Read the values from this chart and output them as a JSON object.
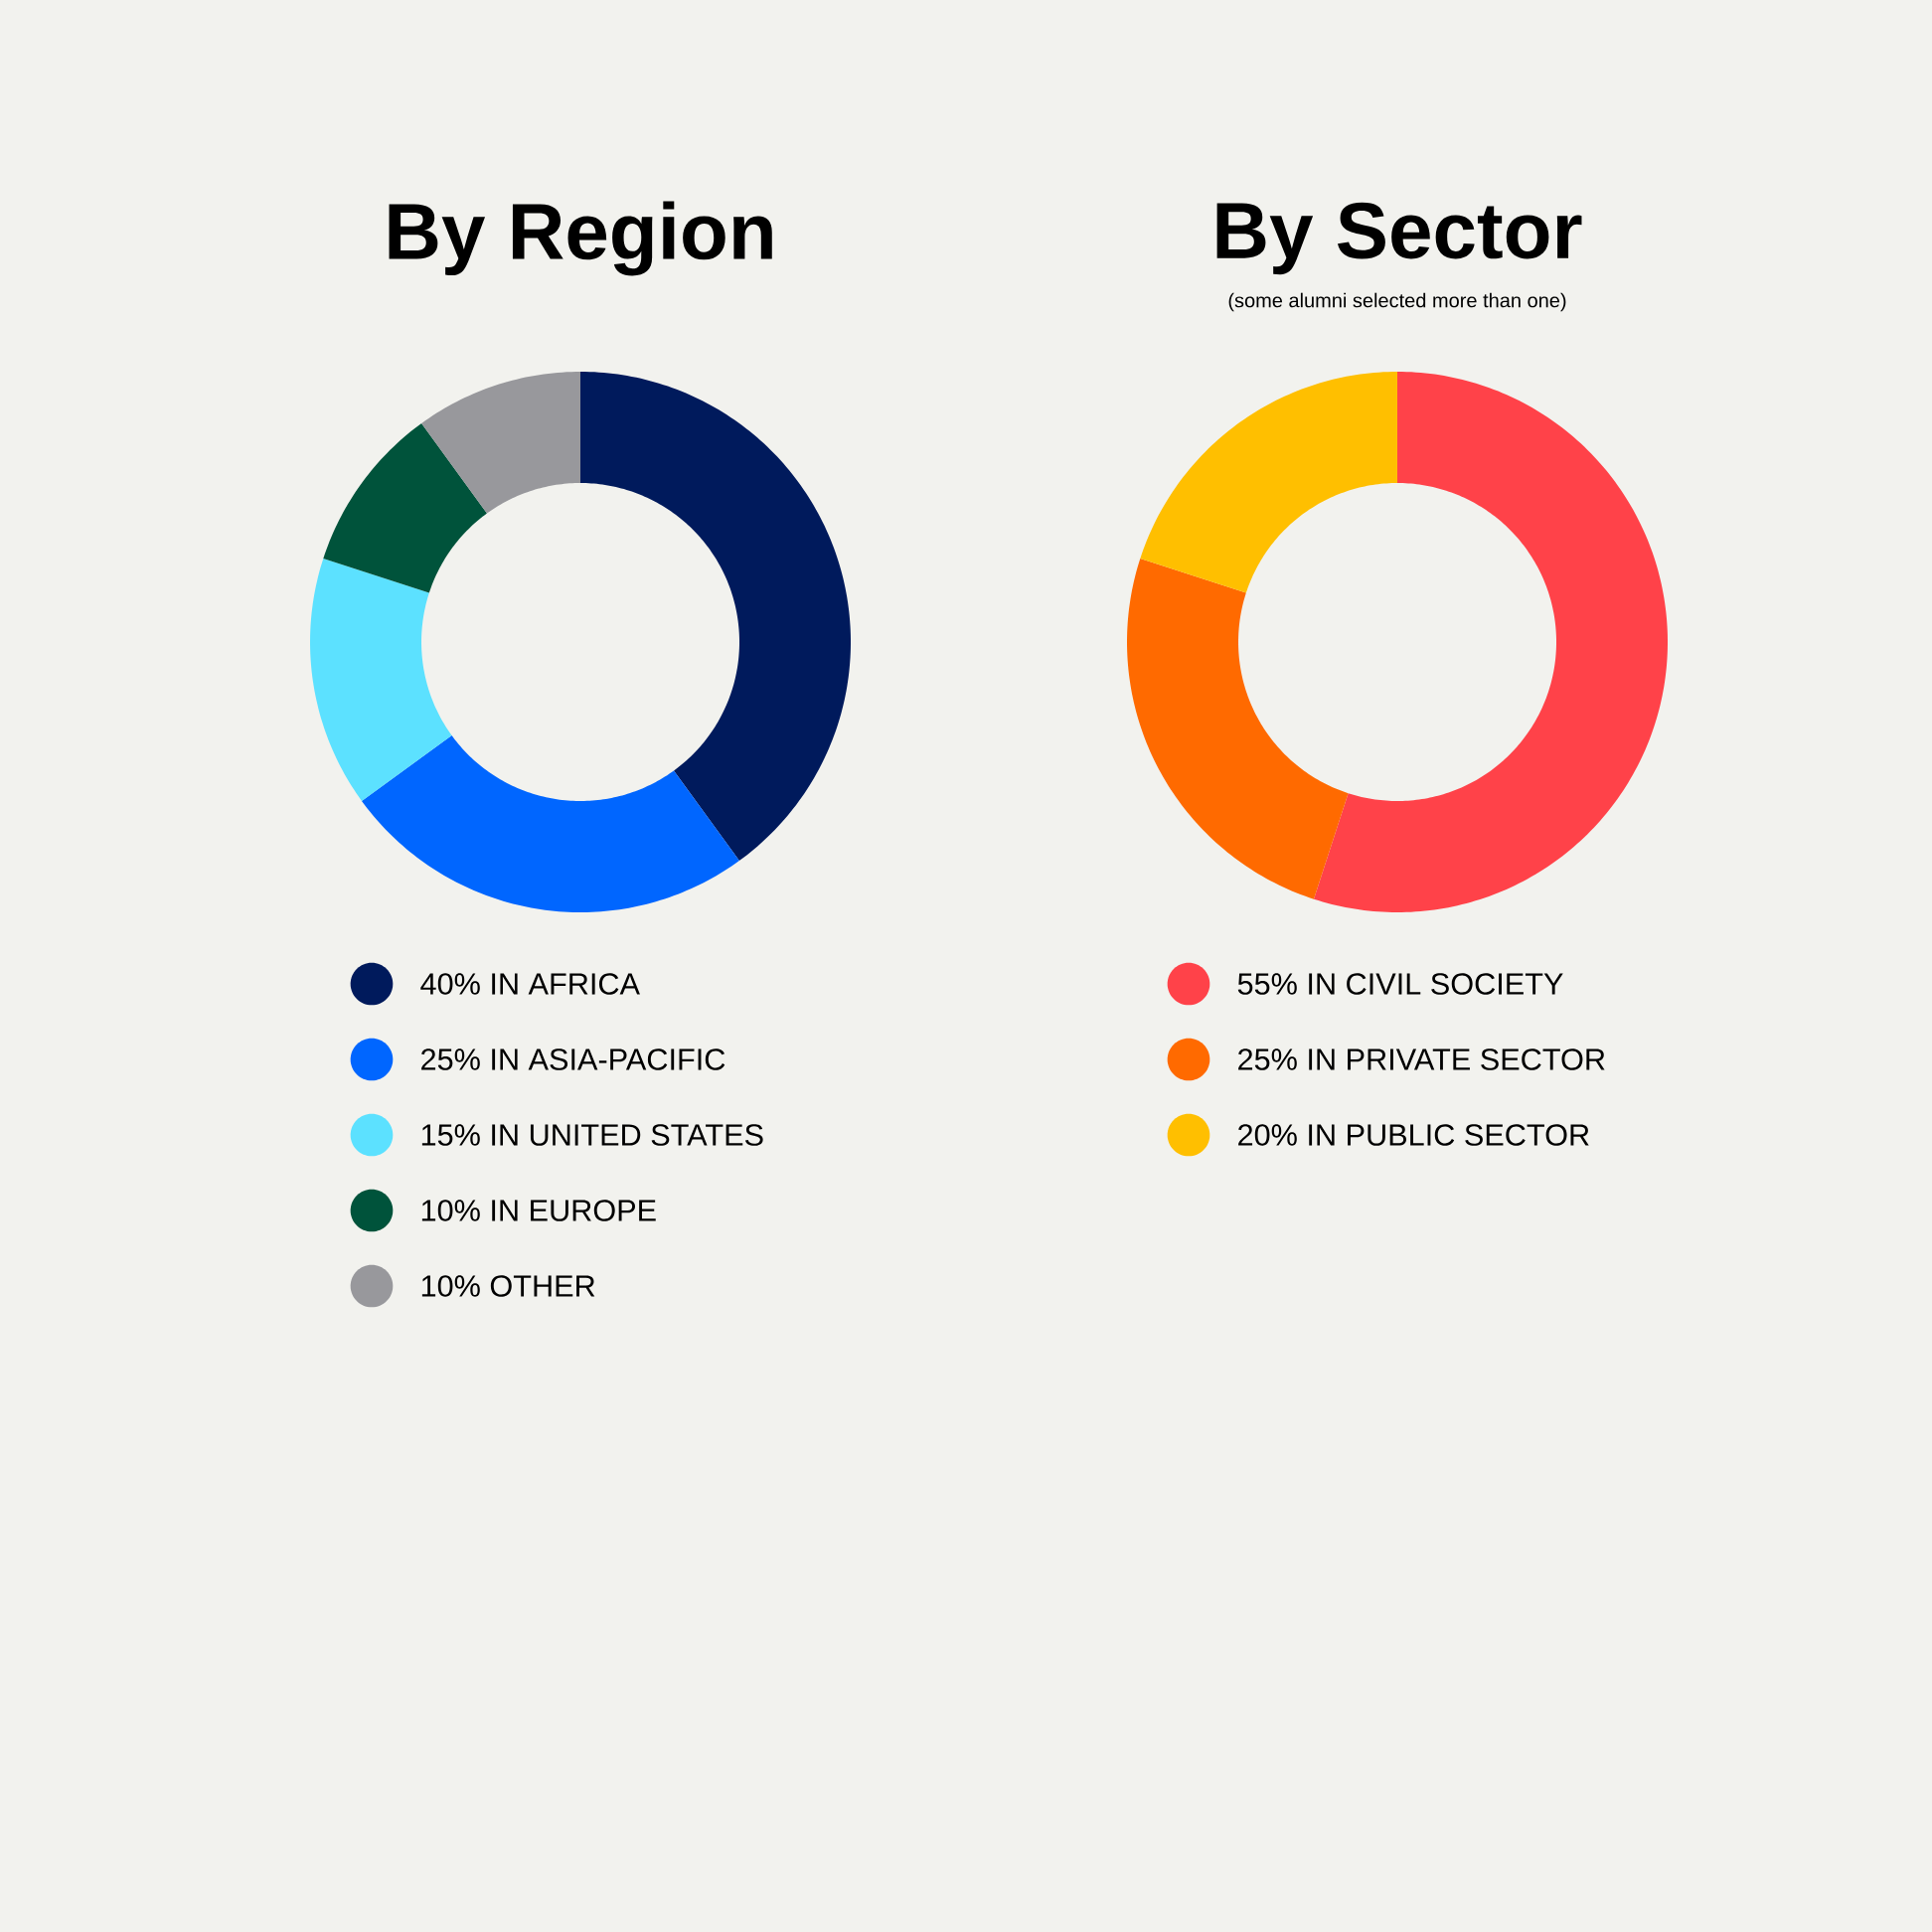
{
  "chart_data": [
    {
      "type": "donut",
      "title": "By Region",
      "categories": [
        "40% IN AFRICA",
        "25% IN ASIA-PACIFIC",
        "15% IN UNITED STATES",
        "10% IN EUROPE",
        "10% OTHER"
      ],
      "values": [
        40,
        25,
        15,
        10,
        10
      ],
      "colors": [
        "#001a5c",
        "#0066ff",
        "#5ce1ff",
        "#00533b",
        "#98989c"
      ],
      "legend": "bottom"
    },
    {
      "type": "donut",
      "title": "By Sector",
      "subtitle": "(some alumni selected more than one)",
      "categories": [
        "55% IN CIVIL SOCIETY",
        "25% IN PRIVATE SECTOR",
        "20% IN PUBLIC SECTOR"
      ],
      "values": [
        55,
        25,
        20
      ],
      "colors": [
        "#ff4249",
        "#ff6a00",
        "#ffbf00"
      ],
      "legend": "bottom"
    }
  ]
}
